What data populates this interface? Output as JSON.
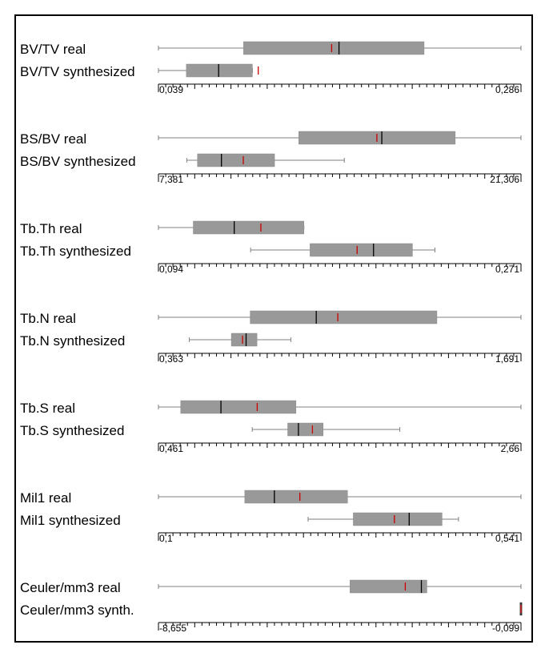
{
  "chart_data": {
    "type": "boxplot",
    "colors": {
      "box": "#999999",
      "median": "#000000",
      "mean": "#cc0000",
      "whisker": "#808080",
      "axis": "#000000"
    },
    "panels": [
      {
        "range": [
          0.039,
          0.286
        ],
        "range_labels": [
          "0,039",
          "0,286"
        ],
        "series": [
          {
            "name": "BV/TV real",
            "min": 0.039,
            "q1": 0.097,
            "median": 0.162,
            "mean": 0.157,
            "q3": 0.22,
            "max": 0.286
          },
          {
            "name": "BV/TV synthesized",
            "min": 0.039,
            "q1": 0.058,
            "median": 0.08,
            "mean": 0.107,
            "q3": 0.103,
            "max": 0.103
          }
        ]
      },
      {
        "range": [
          7.381,
          21.306
        ],
        "range_labels": [
          "7,381",
          "21,306"
        ],
        "series": [
          {
            "name": "BS/BV real",
            "min": 7.381,
            "q1": 12.77,
            "median": 15.96,
            "mean": 15.77,
            "q3": 18.78,
            "max": 21.306
          },
          {
            "name": "BS/BV  synthesized",
            "min": 8.47,
            "q1": 8.88,
            "median": 9.8,
            "mean": 10.64,
            "q3": 11.84,
            "max": 14.52
          }
        ]
      },
      {
        "range": [
          0.094,
          0.271
        ],
        "range_labels": [
          "0,094",
          "0,271"
        ],
        "series": [
          {
            "name": "Tb.Th real",
            "min": 0.094,
            "q1": 0.111,
            "median": 0.131,
            "mean": 0.144,
            "q3": 0.165,
            "max": 0.165
          },
          {
            "name": "Tb.Th synthesized",
            "min": 0.139,
            "q1": 0.168,
            "median": 0.199,
            "mean": 0.191,
            "q3": 0.218,
            "max": 0.229
          }
        ]
      },
      {
        "range": [
          0.363,
          1.691
        ],
        "range_labels": [
          "0,363",
          "1,691"
        ],
        "series": [
          {
            "name": "Tb.N real",
            "min": 0.363,
            "q1": 0.699,
            "median": 0.941,
            "mean": 1.02,
            "q3": 1.383,
            "max": 1.691
          },
          {
            "name": "Tb.N synthesized",
            "min": 0.476,
            "q1": 0.63,
            "median": 0.684,
            "mean": 0.671,
            "q3": 0.724,
            "max": 0.848
          }
        ]
      },
      {
        "range": [
          0.461,
          2.66
        ],
        "range_labels": [
          "0,461",
          "2,66"
        ],
        "series": [
          {
            "name": "Tb.S real",
            "min": 0.461,
            "q1": 0.596,
            "median": 0.84,
            "mean": 1.06,
            "q3": 1.295,
            "max": 2.66
          },
          {
            "name": "Tb.S synthesized",
            "min": 1.03,
            "q1": 1.245,
            "median": 1.31,
            "mean": 1.395,
            "q3": 1.46,
            "max": 1.925
          }
        ]
      },
      {
        "range": [
          0.1,
          0.541
        ],
        "range_labels": [
          "0,1",
          "0,541"
        ],
        "series": [
          {
            "name": "Mil1 real",
            "min": 0.1,
            "q1": 0.205,
            "median": 0.241,
            "mean": 0.272,
            "q3": 0.33,
            "max": 0.541
          },
          {
            "name": "Mil1 synthesized",
            "min": 0.282,
            "q1": 0.337,
            "median": 0.405,
            "mean": 0.387,
            "q3": 0.445,
            "max": 0.465
          }
        ]
      },
      {
        "range": [
          -8.655,
          -0.099
        ],
        "range_labels": [
          "-8,655",
          "-0,099"
        ],
        "series": [
          {
            "name": "Ceuler/mm3 real",
            "min": -8.655,
            "q1": -4.135,
            "median": -2.45,
            "mean": -2.83,
            "q3": -2.32,
            "max": -0.099
          },
          {
            "name": "Ceuler/mm3 synth.",
            "min": -0.099,
            "q1": -0.099,
            "median": -0.099,
            "mean": -0.099,
            "q3": -0.099,
            "max": -0.099
          }
        ]
      }
    ]
  }
}
